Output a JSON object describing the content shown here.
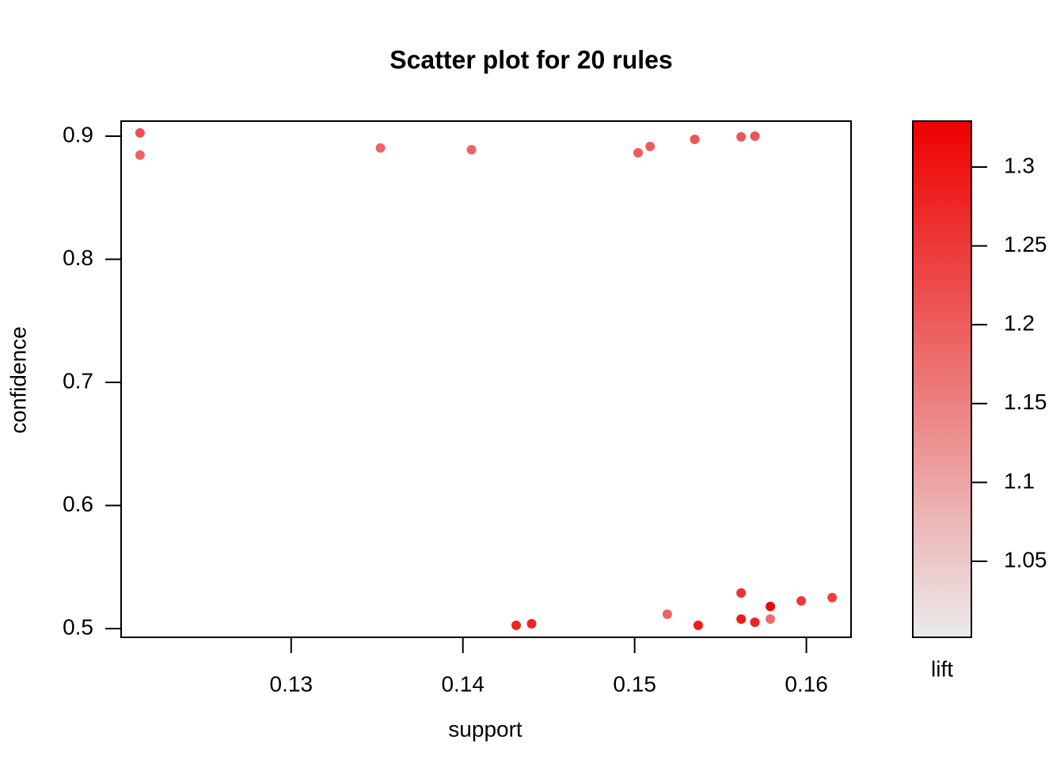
{
  "chart_data": {
    "type": "scatter",
    "title": "Scatter plot for 20 rules",
    "x_label": "support",
    "y_label": "confidence",
    "color_label": "lift",
    "x": [
      0.1212,
      0.1212,
      0.1352,
      0.1405,
      0.1502,
      0.1509,
      0.1535,
      0.1562,
      0.157,
      0.1431,
      0.144,
      0.1519,
      0.1537,
      0.1562,
      0.1562,
      0.157,
      0.1579,
      0.1579,
      0.1597,
      0.1615
    ],
    "y": [
      0.9026,
      0.8846,
      0.8904,
      0.889,
      0.8865,
      0.8916,
      0.8974,
      0.8994,
      0.9,
      0.5026,
      0.5039,
      0.5116,
      0.5026,
      0.5289,
      0.5077,
      0.5051,
      0.518,
      0.5077,
      0.5225,
      0.5251
    ],
    "lift": [
      1.22,
      1.19,
      1.19,
      1.19,
      1.2,
      1.2,
      1.21,
      1.21,
      1.21,
      1.28,
      1.28,
      1.19,
      1.29,
      1.26,
      1.29,
      1.28,
      1.32,
      1.18,
      1.25,
      1.24
    ],
    "xlim": [
      0.1201,
      0.1626
    ],
    "ylim": [
      0.4929,
      0.9122
    ],
    "xticks": [
      0.13,
      0.14,
      0.15,
      0.16
    ],
    "yticks": [
      0.5,
      0.6,
      0.7,
      0.8,
      0.9
    ],
    "lift_lim": [
      1.0018,
      1.3291
    ],
    "lift_ticks": [
      1.05,
      1.1,
      1.15,
      1.2,
      1.25,
      1.3
    ],
    "colorscale": [
      "#ebebeb",
      "#ee0000"
    ]
  }
}
